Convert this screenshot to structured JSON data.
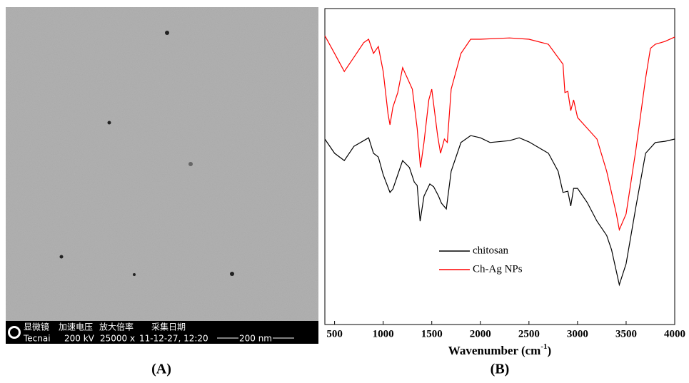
{
  "panel_a": {
    "label": "(A)",
    "info_header": [
      "显微镜",
      "加速电压",
      "放大倍率",
      "采集日期"
    ],
    "info_values": [
      "Tecnai",
      "200 kV",
      "25000 x",
      "11-12-27, 12:20"
    ],
    "scale_bar": "200 nm"
  },
  "chart_data": {
    "type": "line",
    "panel_label": "(B)",
    "x_label": {
      "text": "Wavenumber (cm",
      "sup": "-1",
      "tail": ")"
    },
    "xlim": [
      400,
      4000
    ],
    "xticks": [
      500,
      1000,
      1500,
      2000,
      2500,
      3000,
      3500,
      4000
    ],
    "ylim": [
      0,
      100
    ],
    "legend": "lower-left",
    "series": [
      {
        "name": "chitosan",
        "color": "#000000",
        "x": [
          400,
          500,
          600,
          700,
          800,
          850,
          900,
          950,
          1000,
          1070,
          1100,
          1150,
          1200,
          1270,
          1320,
          1350,
          1380,
          1420,
          1480,
          1520,
          1570,
          1600,
          1650,
          1700,
          1800,
          1900,
          2000,
          2100,
          2300,
          2400,
          2500,
          2700,
          2800,
          2850,
          2900,
          2930,
          2960,
          3000,
          3100,
          3200,
          3300,
          3350,
          3430,
          3500,
          3600,
          3700,
          3800,
          3900,
          4000
        ],
        "values": [
          58.7,
          54.2,
          51.9,
          56.4,
          58.2,
          59.1,
          54.2,
          53.0,
          47.4,
          41.8,
          42.9,
          47.4,
          51.9,
          49.7,
          45.1,
          44.0,
          32.7,
          40.6,
          44.5,
          43.6,
          40.6,
          38.4,
          36.6,
          48.5,
          57.6,
          59.8,
          59.1,
          57.6,
          58.2,
          59.1,
          57.8,
          54.2,
          48.5,
          41.8,
          42.2,
          37.5,
          43.1,
          43.1,
          38.6,
          32.7,
          28.2,
          23.7,
          12.6,
          19.2,
          37.2,
          54.2,
          57.6,
          58.0,
          58.7
        ]
      },
      {
        "name": "Ch-Ag NPs",
        "color": "#ff0000",
        "x": [
          400,
          500,
          600,
          700,
          800,
          850,
          900,
          950,
          1000,
          1050,
          1070,
          1100,
          1150,
          1200,
          1250,
          1300,
          1350,
          1384,
          1420,
          1470,
          1500,
          1560,
          1590,
          1630,
          1660,
          1700,
          1800,
          1900,
          2000,
          2300,
          2500,
          2700,
          2850,
          2870,
          2900,
          2930,
          2960,
          3000,
          3100,
          3200,
          3300,
          3400,
          3430,
          3500,
          3600,
          3700,
          3750,
          3800,
          3900,
          4000
        ],
        "values": [
          91.4,
          85.8,
          80.1,
          84.6,
          89.2,
          90.3,
          85.8,
          88.0,
          80.1,
          66.6,
          63.2,
          68.8,
          73.4,
          81.3,
          77.9,
          74.5,
          62.1,
          49.7,
          57.6,
          71.1,
          74.5,
          59.8,
          54.2,
          58.7,
          57.6,
          74.5,
          85.8,
          90.3,
          90.3,
          90.7,
          90.3,
          88.7,
          82.4,
          73.4,
          73.8,
          67.7,
          71.1,
          65.5,
          62.1,
          58.7,
          48.5,
          35.0,
          30.0,
          35.0,
          55.3,
          77.9,
          87.4,
          88.7,
          89.6,
          91.0
        ]
      }
    ]
  }
}
